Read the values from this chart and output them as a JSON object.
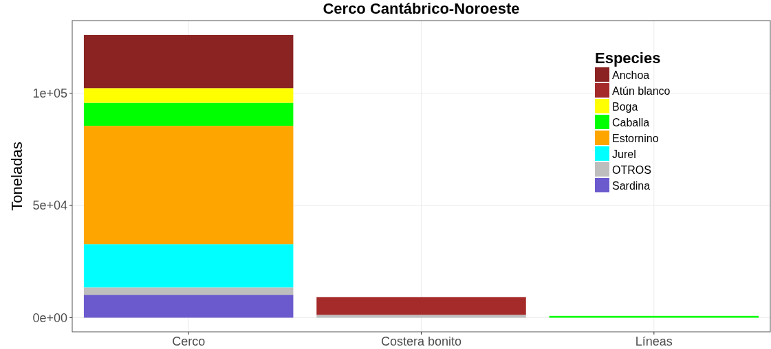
{
  "chart_data": {
    "type": "bar",
    "title": "Cerco Cantábrico-Noroeste",
    "ylabel": "Toneladas",
    "legend_title": "Especies",
    "categories": [
      "Cerco",
      "Costera bonito",
      "Líneas"
    ],
    "stacked": true,
    "series": [
      {
        "name": "Sardina",
        "color": "#6a5acd",
        "values": [
          10200,
          null,
          null
        ]
      },
      {
        "name": "OTROS",
        "color": "#bebebe",
        "values": [
          3300,
          1300,
          null
        ]
      },
      {
        "name": "Jurel",
        "color": "#00ffff",
        "values": [
          19300,
          null,
          null
        ]
      },
      {
        "name": "Estornino",
        "color": "#ffa500",
        "values": [
          52700,
          null,
          null
        ]
      },
      {
        "name": "Caballa",
        "color": "#00ff00",
        "values": [
          10300,
          null,
          800
        ]
      },
      {
        "name": "Boga",
        "color": "#ffff00",
        "values": [
          6500,
          null,
          null
        ]
      },
      {
        "name": "Atún blanco",
        "color": "#a52a2a",
        "values": [
          null,
          7900,
          null
        ]
      },
      {
        "name": "Anchoa",
        "color": "#8b2323",
        "values": [
          23700,
          null,
          null
        ]
      }
    ],
    "ylim": [
      -6300,
      132400
    ],
    "yticks": [
      {
        "value": 0,
        "label": "0e+00"
      },
      {
        "value": 50000,
        "label": "5e+04"
      },
      {
        "value": 100000,
        "label": "1e+05"
      }
    ],
    "grid": true,
    "legend": "top right"
  }
}
